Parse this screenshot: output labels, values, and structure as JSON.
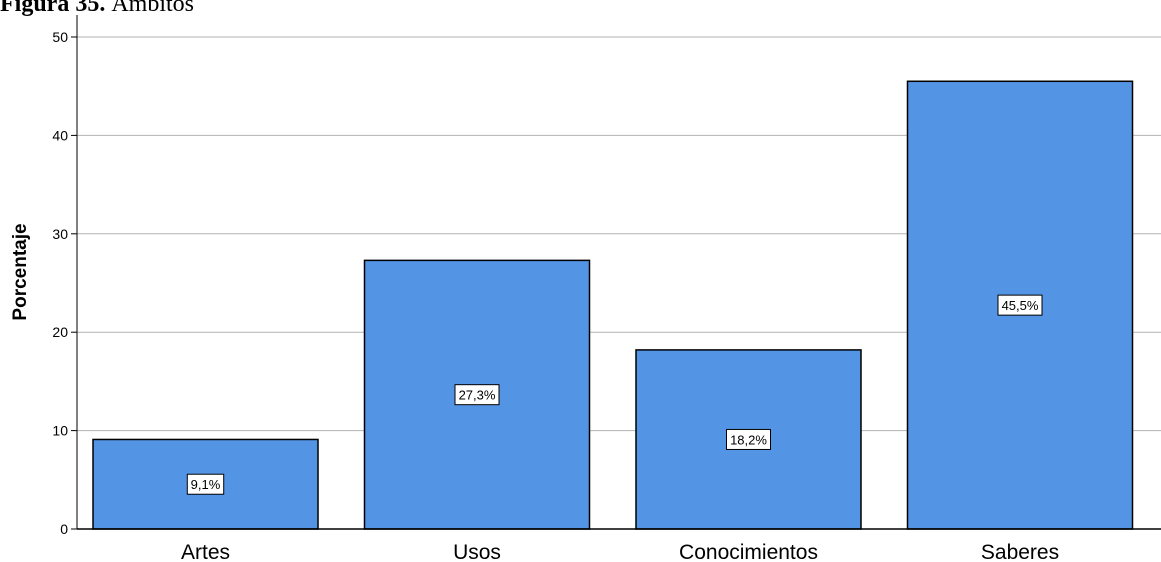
{
  "caption": {
    "label": "Figura 35.",
    "text": "Ámbitos"
  },
  "colors": {
    "bar": "#5494e5",
    "grid": "#b3b3b3",
    "axis": "#000000"
  },
  "chart_data": {
    "type": "bar",
    "title": "",
    "xlabel": "",
    "ylabel": "Porcentaje",
    "categories": [
      "Artes",
      "Usos",
      "Conocimientos",
      "Saberes"
    ],
    "values": [
      9.1,
      27.3,
      18.2,
      45.5
    ],
    "data_labels": [
      "9,1%",
      "27,3%",
      "18,2%",
      "45,5%"
    ],
    "ylim": [
      0,
      50
    ],
    "yticks": [
      0,
      10,
      20,
      30,
      40,
      50
    ],
    "grid": true,
    "legend": "none"
  }
}
